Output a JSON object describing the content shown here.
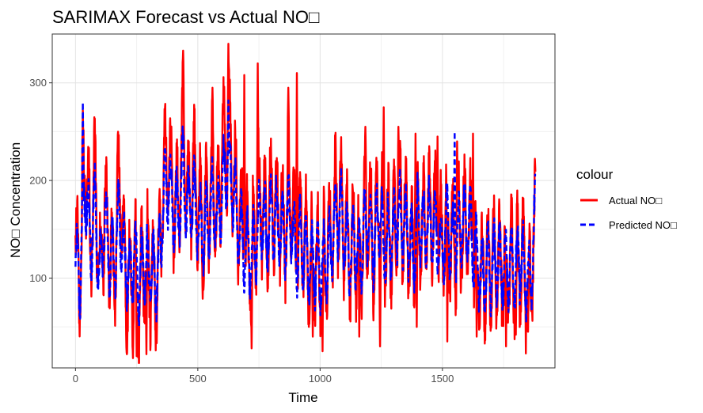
{
  "chart_data": {
    "type": "line",
    "title": "SARIMAX Forecast vs Actual NO□",
    "xlabel": "Time",
    "ylabel": "NO□ Concentration",
    "xlim": [
      -95,
      1960
    ],
    "ylim": [
      8,
      350
    ],
    "x_ticks": [
      0,
      500,
      1000,
      1500
    ],
    "y_ticks": [
      100,
      200,
      300
    ],
    "grid": true,
    "legend": {
      "title": "colour",
      "position": "right",
      "entries": [
        "Actual NO□",
        "Predicted NO□"
      ]
    },
    "series": [
      {
        "name": "Actual NO□",
        "color": "#ff0000",
        "line_style": "solid",
        "anchors": [
          [
            0,
            120
          ],
          [
            20,
            100
          ],
          [
            40,
            230
          ],
          [
            60,
            140
          ],
          [
            80,
            200
          ],
          [
            100,
            95
          ],
          [
            120,
            180
          ],
          [
            140,
            120
          ],
          [
            160,
            110
          ],
          [
            180,
            210
          ],
          [
            200,
            115
          ],
          [
            220,
            90
          ],
          [
            240,
            120
          ],
          [
            260,
            80
          ],
          [
            280,
            115
          ],
          [
            300,
            110
          ],
          [
            320,
            95
          ],
          [
            340,
            100
          ],
          [
            360,
            210
          ],
          [
            380,
            230
          ],
          [
            400,
            180
          ],
          [
            420,
            170
          ],
          [
            440,
            250
          ],
          [
            460,
            170
          ],
          [
            480,
            210
          ],
          [
            500,
            170
          ],
          [
            520,
            150
          ],
          [
            540,
            170
          ],
          [
            560,
            200
          ],
          [
            580,
            160
          ],
          [
            600,
            230
          ],
          [
            620,
            240
          ],
          [
            640,
            220
          ],
          [
            660,
            175
          ],
          [
            680,
            150
          ],
          [
            700,
            130
          ],
          [
            720,
            120
          ],
          [
            740,
            150
          ],
          [
            760,
            180
          ],
          [
            780,
            150
          ],
          [
            800,
            180
          ],
          [
            820,
            170
          ],
          [
            840,
            160
          ],
          [
            860,
            150
          ],
          [
            880,
            190
          ],
          [
            900,
            130
          ],
          [
            920,
            150
          ],
          [
            940,
            130
          ],
          [
            960,
            110
          ],
          [
            980,
            120
          ],
          [
            1000,
            110
          ],
          [
            1020,
            120
          ],
          [
            1040,
            130
          ],
          [
            1060,
            170
          ],
          [
            1080,
            180
          ],
          [
            1100,
            150
          ],
          [
            1120,
            120
          ],
          [
            1140,
            140
          ],
          [
            1160,
            120
          ],
          [
            1180,
            150
          ],
          [
            1200,
            170
          ],
          [
            1220,
            130
          ],
          [
            1240,
            180
          ],
          [
            1260,
            140
          ],
          [
            1280,
            150
          ],
          [
            1300,
            140
          ],
          [
            1320,
            180
          ],
          [
            1340,
            160
          ],
          [
            1360,
            150
          ],
          [
            1380,
            120
          ],
          [
            1400,
            170
          ],
          [
            1420,
            150
          ],
          [
            1440,
            170
          ],
          [
            1460,
            160
          ],
          [
            1480,
            150
          ],
          [
            1500,
            130
          ],
          [
            1520,
            170
          ],
          [
            1540,
            130
          ],
          [
            1560,
            140
          ],
          [
            1580,
            150
          ],
          [
            1600,
            160
          ],
          [
            1620,
            140
          ],
          [
            1640,
            120
          ],
          [
            1660,
            100
          ],
          [
            1680,
            110
          ],
          [
            1700,
            110
          ],
          [
            1720,
            120
          ],
          [
            1740,
            110
          ],
          [
            1760,
            110
          ],
          [
            1780,
            110
          ],
          [
            1800,
            110
          ],
          [
            1820,
            120
          ],
          [
            1840,
            100
          ],
          [
            1860,
            100
          ],
          [
            1880,
            150
          ]
        ],
        "spikes": [
          [
            30,
            272
          ],
          [
            440,
            333
          ],
          [
            560,
            295
          ],
          [
            625,
            340
          ],
          [
            690,
            308
          ],
          [
            745,
            320
          ],
          [
            870,
            295
          ],
          [
            905,
            310
          ],
          [
            1185,
            255
          ],
          [
            1260,
            275
          ],
          [
            1320,
            255
          ],
          [
            1390,
            248
          ],
          [
            1480,
            245
          ],
          [
            1560,
            240
          ],
          [
            1625,
            248
          ]
        ],
        "dips": [
          [
            210,
            22
          ],
          [
            235,
            18
          ],
          [
            250,
            20
          ],
          [
            290,
            22
          ],
          [
            720,
            28
          ],
          [
            970,
            40
          ],
          [
            1010,
            25
          ],
          [
            1160,
            40
          ],
          [
            1245,
            30
          ],
          [
            1395,
            50
          ],
          [
            1520,
            35
          ],
          [
            1640,
            40
          ],
          [
            1760,
            30
          ],
          [
            1800,
            42
          ],
          [
            1850,
            45
          ]
        ]
      },
      {
        "name": "Predicted NO□",
        "color": "#0000ff",
        "line_style": "dashed",
        "anchors": [
          [
            0,
            115
          ],
          [
            20,
            105
          ],
          [
            40,
            200
          ],
          [
            60,
            135
          ],
          [
            80,
            175
          ],
          [
            100,
            100
          ],
          [
            120,
            165
          ],
          [
            140,
            120
          ],
          [
            160,
            115
          ],
          [
            180,
            170
          ],
          [
            200,
            120
          ],
          [
            220,
            100
          ],
          [
            240,
            120
          ],
          [
            260,
            95
          ],
          [
            280,
            115
          ],
          [
            300,
            110
          ],
          [
            320,
            100
          ],
          [
            340,
            105
          ],
          [
            360,
            185
          ],
          [
            380,
            200
          ],
          [
            400,
            170
          ],
          [
            420,
            165
          ],
          [
            440,
            215
          ],
          [
            460,
            165
          ],
          [
            480,
            190
          ],
          [
            500,
            160
          ],
          [
            520,
            145
          ],
          [
            540,
            160
          ],
          [
            560,
            180
          ],
          [
            580,
            155
          ],
          [
            600,
            200
          ],
          [
            620,
            215
          ],
          [
            640,
            200
          ],
          [
            660,
            165
          ],
          [
            680,
            140
          ],
          [
            700,
            125
          ],
          [
            720,
            120
          ],
          [
            740,
            140
          ],
          [
            760,
            165
          ],
          [
            780,
            145
          ],
          [
            800,
            165
          ],
          [
            820,
            160
          ],
          [
            840,
            150
          ],
          [
            860,
            145
          ],
          [
            880,
            170
          ],
          [
            900,
            125
          ],
          [
            920,
            140
          ],
          [
            940,
            125
          ],
          [
            960,
            110
          ],
          [
            980,
            115
          ],
          [
            1000,
            110
          ],
          [
            1020,
            115
          ],
          [
            1040,
            125
          ],
          [
            1060,
            160
          ],
          [
            1080,
            170
          ],
          [
            1100,
            145
          ],
          [
            1120,
            120
          ],
          [
            1140,
            135
          ],
          [
            1160,
            120
          ],
          [
            1180,
            145
          ],
          [
            1200,
            160
          ],
          [
            1220,
            130
          ],
          [
            1240,
            170
          ],
          [
            1260,
            135
          ],
          [
            1280,
            145
          ],
          [
            1300,
            140
          ],
          [
            1320,
            170
          ],
          [
            1340,
            155
          ],
          [
            1360,
            145
          ],
          [
            1380,
            120
          ],
          [
            1400,
            165
          ],
          [
            1420,
            145
          ],
          [
            1440,
            160
          ],
          [
            1460,
            150
          ],
          [
            1480,
            145
          ],
          [
            1500,
            130
          ],
          [
            1520,
            160
          ],
          [
            1540,
            130
          ],
          [
            1560,
            140
          ],
          [
            1580,
            150
          ],
          [
            1600,
            160
          ],
          [
            1620,
            140
          ],
          [
            1640,
            120
          ],
          [
            1660,
            100
          ],
          [
            1680,
            110
          ],
          [
            1700,
            110
          ],
          [
            1720,
            120
          ],
          [
            1740,
            110
          ],
          [
            1760,
            110
          ],
          [
            1780,
            110
          ],
          [
            1800,
            110
          ],
          [
            1820,
            120
          ],
          [
            1840,
            100
          ],
          [
            1860,
            100
          ],
          [
            1880,
            165
          ]
        ],
        "spikes": [
          [
            30,
            280
          ],
          [
            625,
            282
          ],
          [
            1550,
            250
          ]
        ],
        "dips": []
      }
    ]
  }
}
